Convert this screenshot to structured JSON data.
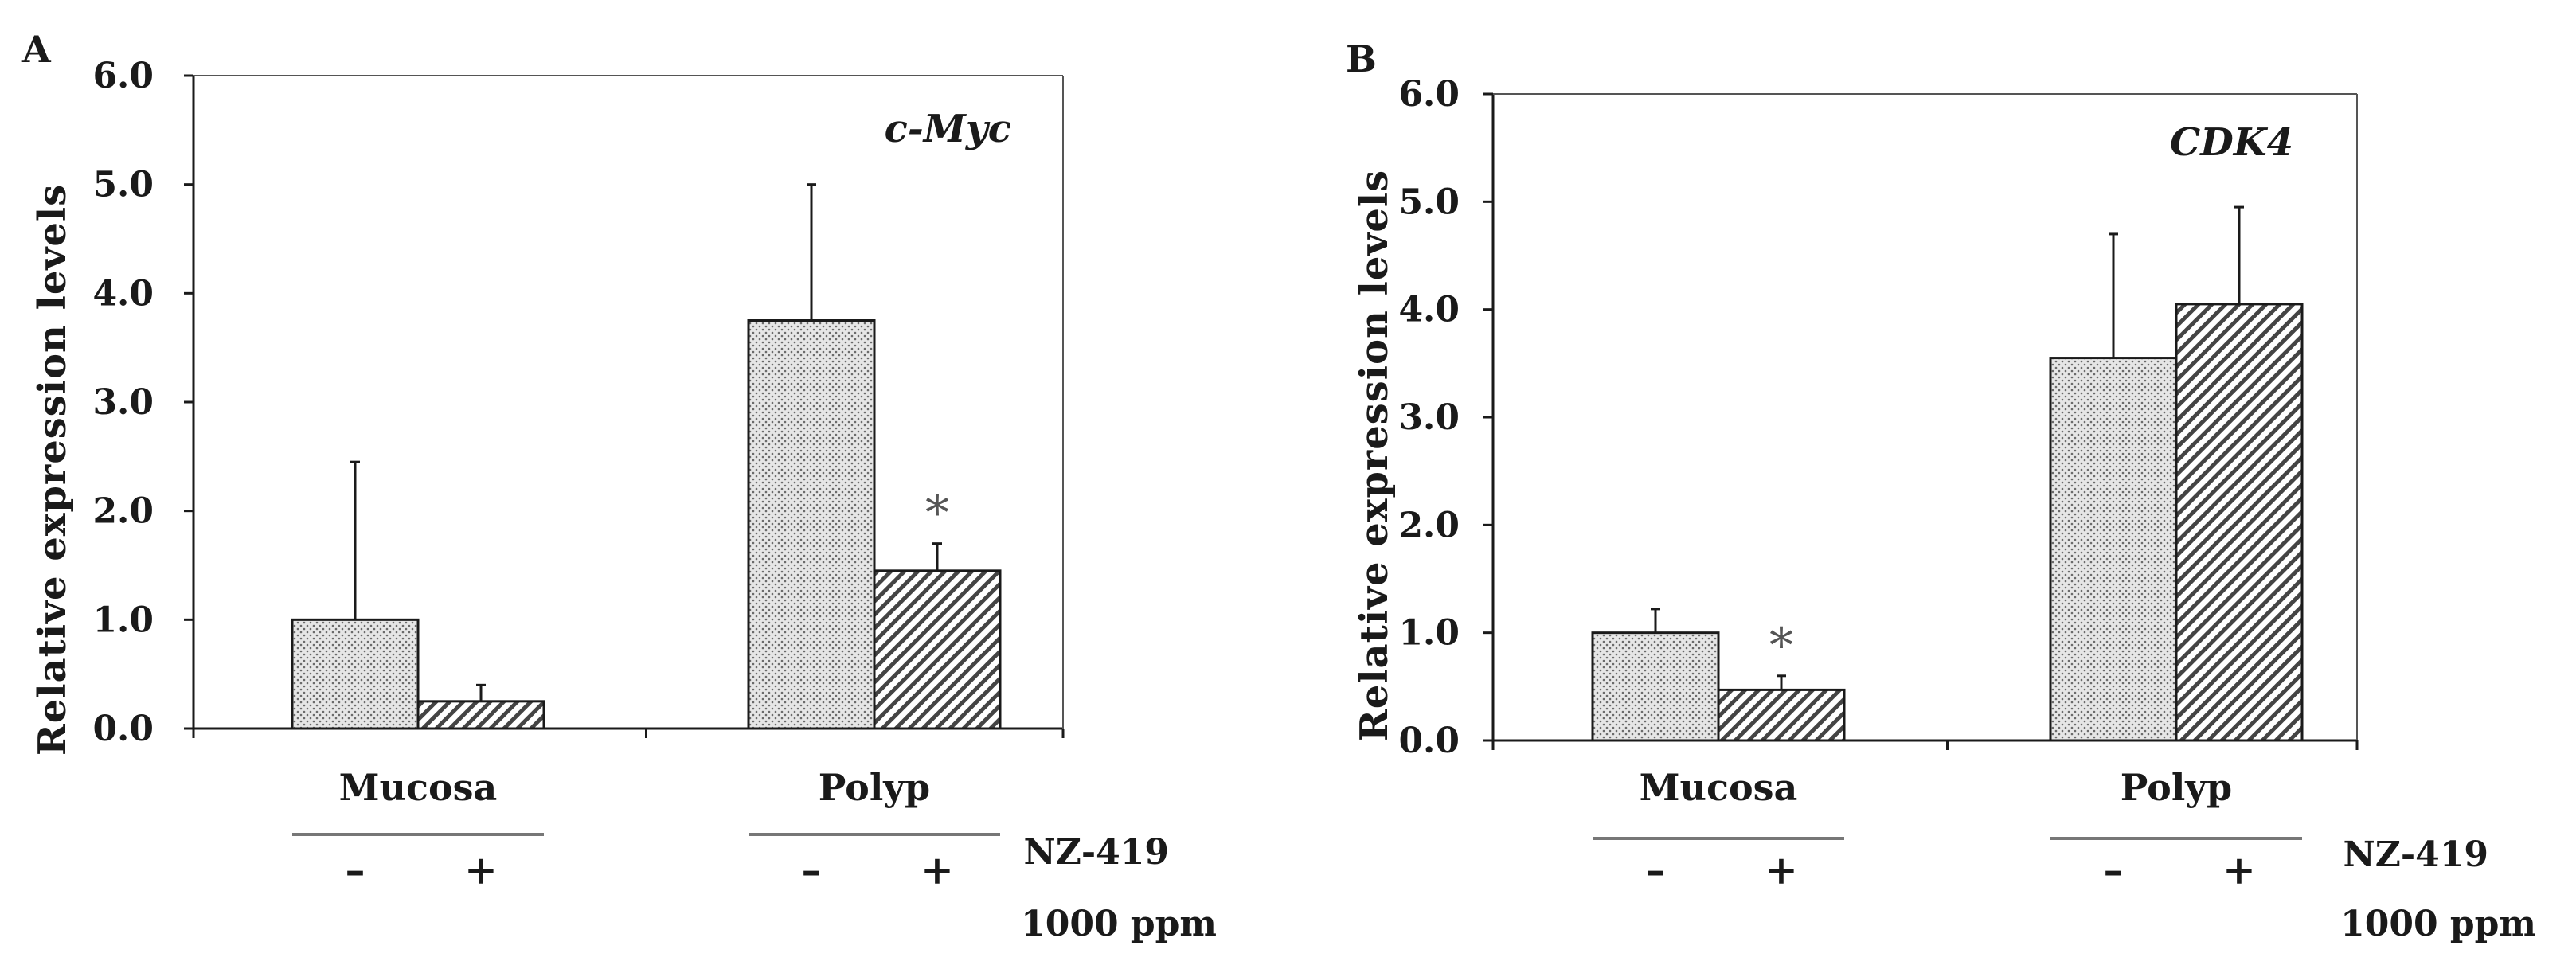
{
  "figure": {
    "colors": {
      "axis": "#1a1a1a",
      "bar_stroke": "#1a1a1a",
      "untreated_fill": "#dcdcdc",
      "treated_fill": "#ffffff",
      "hatch": "#333333",
      "underline": "#777777"
    }
  },
  "chart_data": [
    {
      "type": "bar",
      "panel": "A",
      "title": "c-Myc",
      "ylabel": "Relative expression levels",
      "xlabel": "",
      "ylim": [
        0,
        6
      ],
      "yticks": [
        "0.0",
        "1.0",
        "2.0",
        "3.0",
        "4.0",
        "5.0",
        "6.0"
      ],
      "grid": false,
      "groups": [
        "Mucosa",
        "Polyp"
      ],
      "conditions": [
        "–",
        "+"
      ],
      "treatment_label": "NZ-419",
      "treatment_dose": "1000 ppm",
      "series": [
        {
          "name": "NZ-419 –",
          "values": [
            1.0,
            3.75
          ],
          "errors": [
            1.45,
            1.25
          ],
          "pattern": "dots"
        },
        {
          "name": "NZ-419 +",
          "values": [
            0.25,
            1.45
          ],
          "errors": [
            0.15,
            0.25
          ],
          "pattern": "diagonal"
        }
      ],
      "annotations": [
        {
          "text": "*",
          "group": 1,
          "series": 1
        }
      ]
    },
    {
      "type": "bar",
      "panel": "B",
      "title": "CDK4",
      "ylabel": "Relative expression levels",
      "xlabel": "",
      "ylim": [
        0,
        6
      ],
      "yticks": [
        "0.0",
        "1.0",
        "2.0",
        "3.0",
        "4.0",
        "5.0",
        "6.0"
      ],
      "grid": false,
      "groups": [
        "Mucosa",
        "Polyp"
      ],
      "conditions": [
        "–",
        "+"
      ],
      "treatment_label": "NZ-419",
      "treatment_dose": "1000 ppm",
      "series": [
        {
          "name": "NZ-419 –",
          "values": [
            1.0,
            3.55
          ],
          "errors": [
            0.22,
            1.15
          ],
          "pattern": "dots"
        },
        {
          "name": "NZ-419 +",
          "values": [
            0.47,
            4.05
          ],
          "errors": [
            0.13,
            0.9
          ],
          "pattern": "diagonal"
        }
      ],
      "annotations": [
        {
          "text": "*",
          "group": 0,
          "series": 1
        }
      ]
    }
  ]
}
